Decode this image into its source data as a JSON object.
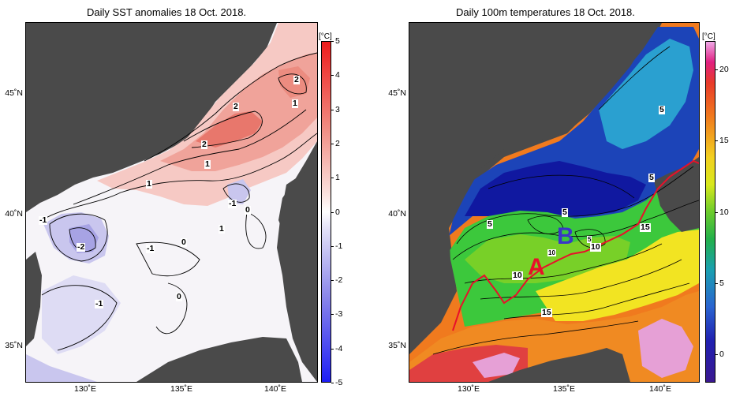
{
  "left_map": {
    "title": "Daily SST anomalies 18 Oct. 2018.",
    "colorbar": {
      "unit": "[°C]",
      "ticks": [
        "5",
        "4",
        "3",
        "2",
        "1",
        "0",
        "-1",
        "-2",
        "-3",
        "-4",
        "-5"
      ],
      "range": [
        -5,
        5
      ]
    },
    "lat_labels": [
      "45˚N",
      "40˚N",
      "35˚N"
    ],
    "lon_labels": [
      "130˚E",
      "135˚E",
      "140˚E"
    ],
    "contour_labels": [
      "2",
      "1",
      "2",
      "2",
      "1",
      "1",
      "-1",
      "0",
      "1",
      "-1",
      "-2",
      "-1",
      "0",
      "0",
      "-1"
    ]
  },
  "right_map": {
    "title": "Daily 100m temperatures 18 Oct. 2018.",
    "colorbar": {
      "unit": "[°C]",
      "ticks": [
        "20",
        "15",
        "10",
        "5",
        "0"
      ],
      "range": [
        -2,
        22
      ]
    },
    "lat_labels": [
      "45˚N",
      "40˚N",
      "35˚N"
    ],
    "lon_labels": [
      "130˚E",
      "135˚E",
      "140˚E"
    ],
    "contour_labels": [
      "5",
      "5",
      "5",
      "5",
      "5",
      "15",
      "10",
      "10",
      "10",
      "15"
    ],
    "markers": [
      "A",
      "B"
    ],
    "colors": {
      "marker_a": "#e8102a",
      "marker_b": "#3a36c8",
      "front_line": "#e8102a"
    }
  }
}
